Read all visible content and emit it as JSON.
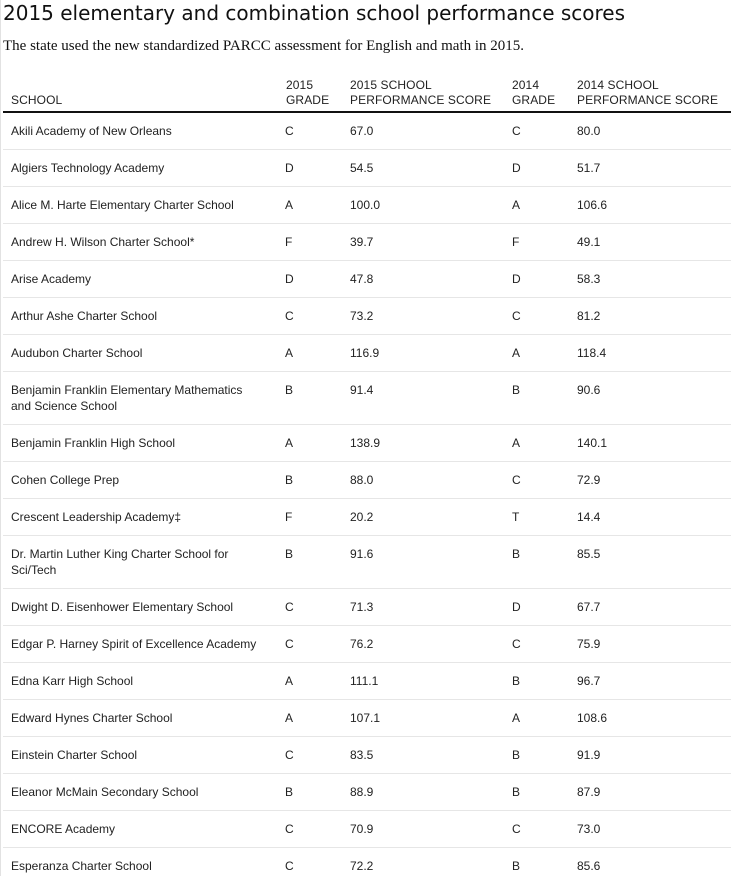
{
  "title": "2015 elementary and combination school performance scores",
  "subtitle": "The state used the new standardized PARCC assessment for English and math in 2015.",
  "table": {
    "headers": {
      "school": "SCHOOL",
      "grade_2015": "2015\nGRADE",
      "score_2015": "2015 SCHOOL\nPERFORMANCE SCORE",
      "grade_2014": "2014\nGRADE",
      "score_2014": "2014 SCHOOL\nPERFORMANCE SCORE"
    },
    "rows": [
      {
        "school": "Akili Academy of New Orleans",
        "grade_2015": "C",
        "score_2015": "67.0",
        "grade_2014": "C",
        "score_2014": "80.0"
      },
      {
        "school": "Algiers Technology Academy",
        "grade_2015": "D",
        "score_2015": "54.5",
        "grade_2014": "D",
        "score_2014": "51.7"
      },
      {
        "school": "Alice M. Harte Elementary Charter School",
        "grade_2015": "A",
        "score_2015": "100.0",
        "grade_2014": "A",
        "score_2014": "106.6"
      },
      {
        "school": "Andrew H. Wilson Charter School*",
        "grade_2015": "F",
        "score_2015": "39.7",
        "grade_2014": "F",
        "score_2014": "49.1"
      },
      {
        "school": "Arise Academy",
        "grade_2015": "D",
        "score_2015": "47.8",
        "grade_2014": "D",
        "score_2014": "58.3"
      },
      {
        "school": "Arthur Ashe Charter School",
        "grade_2015": "C",
        "score_2015": "73.2",
        "grade_2014": "C",
        "score_2014": "81.2"
      },
      {
        "school": "Audubon Charter School",
        "grade_2015": "A",
        "score_2015": "116.9",
        "grade_2014": "A",
        "score_2014": "118.4"
      },
      {
        "school": "Benjamin Franklin Elementary Mathematics and Science School",
        "grade_2015": "B",
        "score_2015": "91.4",
        "grade_2014": "B",
        "score_2014": "90.6"
      },
      {
        "school": "Benjamin Franklin High School",
        "grade_2015": "A",
        "score_2015": "138.9",
        "grade_2014": "A",
        "score_2014": "140.1"
      },
      {
        "school": "Cohen College Prep",
        "grade_2015": "B",
        "score_2015": "88.0",
        "grade_2014": "C",
        "score_2014": "72.9"
      },
      {
        "school": "Crescent Leadership Academy‡",
        "grade_2015": "F",
        "score_2015": "20.2",
        "grade_2014": "T",
        "score_2014": "14.4"
      },
      {
        "school": "Dr. Martin Luther King Charter School for Sci/Tech",
        "grade_2015": "B",
        "score_2015": "91.6",
        "grade_2014": "B",
        "score_2014": "85.5"
      },
      {
        "school": "Dwight D. Eisenhower Elementary School",
        "grade_2015": "C",
        "score_2015": "71.3",
        "grade_2014": "D",
        "score_2014": "67.7"
      },
      {
        "school": "Edgar P. Harney Spirit of Excellence Academy",
        "grade_2015": "C",
        "score_2015": "76.2",
        "grade_2014": "C",
        "score_2014": "75.9"
      },
      {
        "school": "Edna Karr High School",
        "grade_2015": "A",
        "score_2015": "111.1",
        "grade_2014": "B",
        "score_2014": "96.7"
      },
      {
        "school": "Edward Hynes Charter School",
        "grade_2015": "A",
        "score_2015": "107.1",
        "grade_2014": "A",
        "score_2014": "108.6"
      },
      {
        "school": "Einstein Charter School",
        "grade_2015": "C",
        "score_2015": "83.5",
        "grade_2014": "B",
        "score_2014": "91.9"
      },
      {
        "school": "Eleanor McMain Secondary School",
        "grade_2015": "B",
        "score_2015": "88.9",
        "grade_2014": "B",
        "score_2014": "87.9"
      },
      {
        "school": "ENCORE Academy",
        "grade_2015": "C",
        "score_2015": "70.9",
        "grade_2014": "C",
        "score_2014": "73.0"
      },
      {
        "school": "Esperanza Charter School",
        "grade_2015": "C",
        "score_2015": "72.2",
        "grade_2014": "B",
        "score_2014": "85.6"
      }
    ]
  }
}
